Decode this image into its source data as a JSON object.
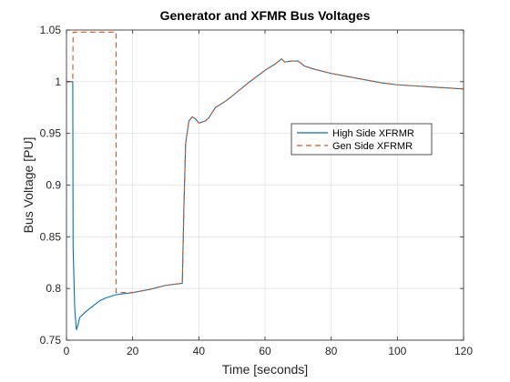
{
  "chart_data": {
    "type": "line",
    "title": "Generator and XFMR Bus Voltages",
    "xlabel": "Time [seconds]",
    "ylabel": "Bus Voltage [PU]",
    "xlim": [
      0,
      120
    ],
    "ylim": [
      0.75,
      1.05
    ],
    "xticks": [
      0,
      20,
      40,
      60,
      80,
      100,
      120
    ],
    "yticks": [
      0.75,
      0.8,
      0.85,
      0.9,
      0.95,
      1,
      1.05
    ],
    "xtick_labels": [
      "0",
      "20",
      "40",
      "60",
      "80",
      "100",
      "120"
    ],
    "ytick_labels": [
      "0.75",
      "0.8",
      "0.85",
      "0.9",
      "0.95",
      "1",
      "1.05"
    ],
    "grid": true,
    "legend_position": "center-right",
    "series": [
      {
        "name": "High Side XFRMR",
        "color": "#0072BD",
        "style": "solid",
        "points": [
          [
            0,
            1.0
          ],
          [
            1.9,
            1.0
          ],
          [
            2.0,
            0.84
          ],
          [
            2.5,
            0.78
          ],
          [
            3.0,
            0.76
          ],
          [
            3.5,
            0.765
          ],
          [
            4.0,
            0.772
          ],
          [
            6,
            0.778
          ],
          [
            8,
            0.783
          ],
          [
            10,
            0.788
          ],
          [
            12,
            0.791
          ],
          [
            15,
            0.794
          ],
          [
            20,
            0.796
          ],
          [
            25,
            0.799
          ],
          [
            30,
            0.803
          ],
          [
            35,
            0.805
          ],
          [
            35.5,
            0.88
          ],
          [
            36,
            0.94
          ],
          [
            37,
            0.962
          ],
          [
            38,
            0.966
          ],
          [
            39,
            0.964
          ],
          [
            40,
            0.96
          ],
          [
            41,
            0.961
          ],
          [
            42,
            0.962
          ],
          [
            43,
            0.965
          ],
          [
            44,
            0.97
          ],
          [
            45,
            0.975
          ],
          [
            48,
            0.981
          ],
          [
            50,
            0.986
          ],
          [
            55,
            0.999
          ],
          [
            60,
            1.011
          ],
          [
            63,
            1.017
          ],
          [
            65,
            1.022
          ],
          [
            66,
            1.019
          ],
          [
            68,
            1.02
          ],
          [
            70,
            1.02
          ],
          [
            72,
            1.015
          ],
          [
            75,
            1.012
          ],
          [
            80,
            1.008
          ],
          [
            85,
            1.005
          ],
          [
            90,
            1.002
          ],
          [
            95,
            0.999
          ],
          [
            100,
            0.997
          ],
          [
            105,
            0.996
          ],
          [
            110,
            0.995
          ],
          [
            115,
            0.994
          ],
          [
            120,
            0.993
          ]
        ]
      },
      {
        "name": "Gen Side XFRMR",
        "color": "#D95319",
        "style": "dashed",
        "points": [
          [
            0,
            1.0
          ],
          [
            1.9,
            1.0
          ],
          [
            2.0,
            1.048
          ],
          [
            15,
            1.048
          ],
          [
            15,
            0.796
          ],
          [
            20,
            0.796
          ],
          [
            25,
            0.799
          ],
          [
            30,
            0.803
          ],
          [
            35,
            0.805
          ],
          [
            35.5,
            0.88
          ],
          [
            36,
            0.94
          ],
          [
            37,
            0.962
          ],
          [
            38,
            0.966
          ],
          [
            39,
            0.964
          ],
          [
            40,
            0.96
          ],
          [
            41,
            0.961
          ],
          [
            42,
            0.962
          ],
          [
            43,
            0.965
          ],
          [
            44,
            0.97
          ],
          [
            45,
            0.975
          ],
          [
            48,
            0.981
          ],
          [
            50,
            0.986
          ],
          [
            55,
            0.999
          ],
          [
            60,
            1.011
          ],
          [
            63,
            1.017
          ],
          [
            65,
            1.022
          ],
          [
            66,
            1.019
          ],
          [
            68,
            1.02
          ],
          [
            70,
            1.02
          ],
          [
            72,
            1.015
          ],
          [
            75,
            1.012
          ],
          [
            80,
            1.008
          ],
          [
            85,
            1.005
          ],
          [
            90,
            1.002
          ],
          [
            95,
            0.999
          ],
          [
            100,
            0.997
          ],
          [
            105,
            0.996
          ],
          [
            110,
            0.995
          ],
          [
            115,
            0.994
          ],
          [
            120,
            0.993
          ]
        ]
      }
    ]
  }
}
